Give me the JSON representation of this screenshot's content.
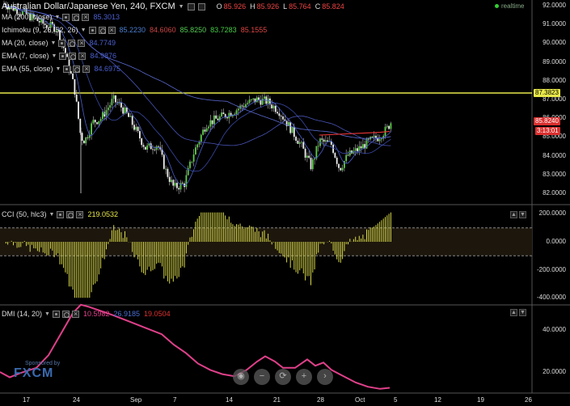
{
  "header": {
    "symbol_title": "Australian Dollar/Japanese Yen, 240, FXCM",
    "ohlc": [
      {
        "key": "O",
        "value": "85.926"
      },
      {
        "key": "H",
        "value": "85.926"
      },
      {
        "key": "L",
        "value": "85.764"
      },
      {
        "key": "C",
        "value": "85.824"
      }
    ],
    "realtime": "realtime"
  },
  "indicators": [
    {
      "label": "MA (200, close)",
      "values": [
        {
          "v": "85.3013",
          "color": "#4a5fcf"
        }
      ]
    },
    {
      "label": "Ichimoku (9, 26, 52, 26)",
      "values": [
        {
          "v": "85.2230",
          "color": "#4a7fd0"
        },
        {
          "v": "84.6060",
          "color": "#cc4444"
        },
        {
          "v": "85.8250",
          "color": "#55cc55"
        },
        {
          "v": "83.7283",
          "color": "#44cc44"
        },
        {
          "v": "85.1555",
          "color": "#dd4444"
        }
      ]
    },
    {
      "label": "MA (20, close)",
      "values": [
        {
          "v": "84.7749",
          "color": "#4a5fcf"
        }
      ]
    },
    {
      "label": "EMA (7, close)",
      "values": [
        {
          "v": "84.9876",
          "color": "#4a5fcf"
        }
      ]
    },
    {
      "label": "EMA (55, close)",
      "values": [
        {
          "v": "84.6975",
          "color": "#4a5fcf"
        }
      ]
    }
  ],
  "price_axis": [
    "92.0000",
    "91.0000",
    "90.0000",
    "89.0000",
    "88.0000",
    "87.0000",
    "86.0000",
    "85.0000",
    "84.0000",
    "83.0000",
    "82.0000"
  ],
  "price_tags": {
    "level": "87.3823",
    "last": "85.8240",
    "countdown": "3:13:01"
  },
  "cci": {
    "label": "CCI (50, hlc3)",
    "value": "219.0532",
    "axis": [
      "200.0000",
      "0.0000",
      "-200.0000",
      "-400.0000"
    ]
  },
  "dmi": {
    "label": "DMI (14, 20)",
    "values": [
      {
        "v": "10.5982",
        "color": "#e0408a"
      },
      {
        "v": "26.9185",
        "color": "#4a6fd0"
      },
      {
        "v": "19.0504",
        "color": "#e03030"
      }
    ],
    "axis": [
      "40.0000",
      "20.0000"
    ]
  },
  "time_axis": [
    {
      "label": "17",
      "x": 32
    },
    {
      "label": "24",
      "x": 94
    },
    {
      "label": "Sep",
      "x": 165
    },
    {
      "label": "7",
      "x": 218
    },
    {
      "label": "14",
      "x": 283
    },
    {
      "label": "21",
      "x": 342
    },
    {
      "label": "28",
      "x": 396
    },
    {
      "label": "Oct",
      "x": 443
    },
    {
      "label": "5",
      "x": 491
    },
    {
      "label": "12",
      "x": 541
    },
    {
      "label": "19",
      "x": 594
    },
    {
      "label": "26",
      "x": 653
    }
  ],
  "sponsor": {
    "line1": "Sponsored by",
    "line2": "FXCM"
  },
  "nav": [
    "◉",
    "−",
    "⟳",
    "+",
    "›"
  ]
}
